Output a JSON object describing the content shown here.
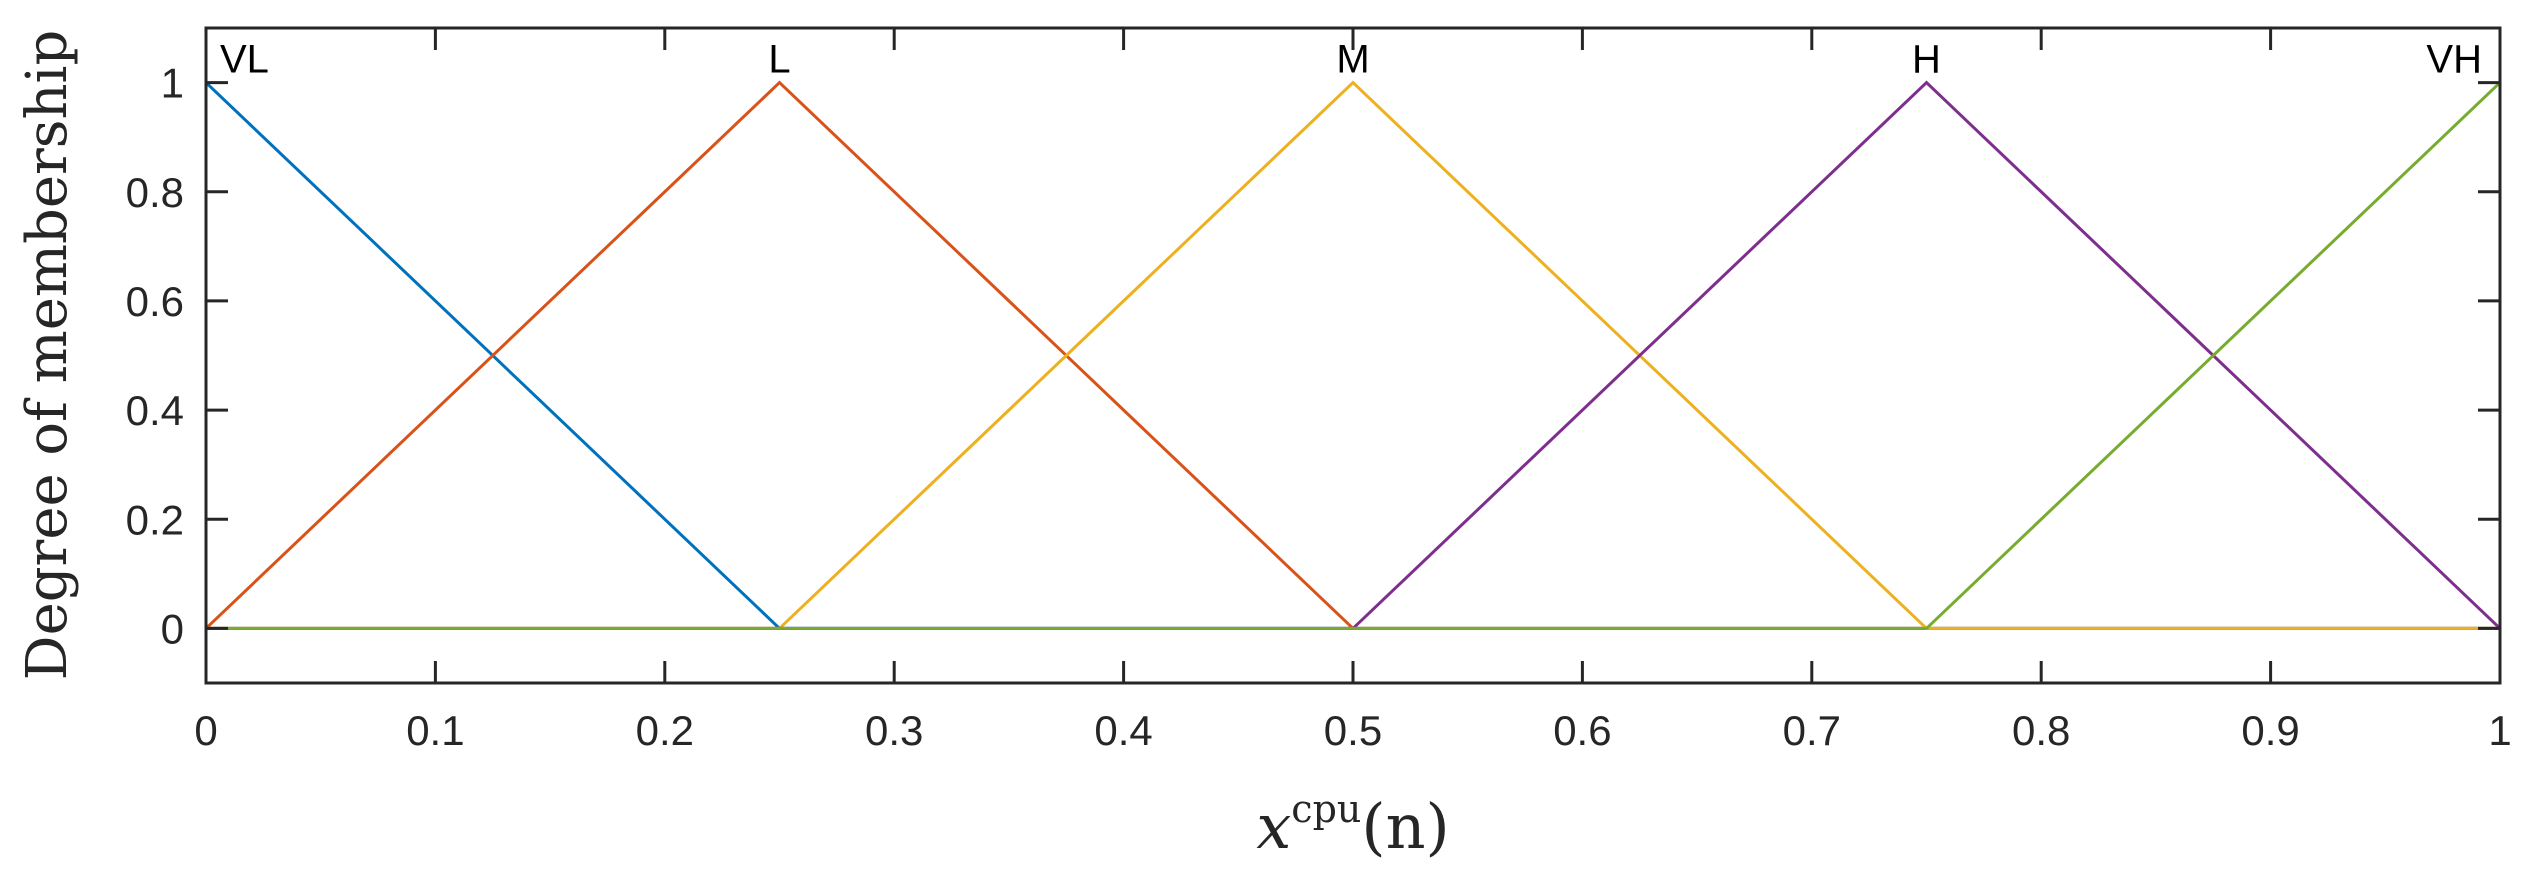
{
  "chart_data": {
    "type": "line",
    "xlabel": "x",
    "xlabel_sup": "cpu",
    "xlabel_arg": "(n)",
    "ylabel": "Degree of membership",
    "xlim": [
      0,
      1
    ],
    "ylim": [
      -0.1,
      1.1
    ],
    "x_ticks": [
      0,
      0.1,
      0.2,
      0.3,
      0.4,
      0.5,
      0.6,
      0.7,
      0.8,
      0.9,
      1
    ],
    "x_tick_labels": [
      "0",
      "0.1",
      "0.2",
      "0.3",
      "0.4",
      "0.5",
      "0.6",
      "0.7",
      "0.8",
      "0.9",
      "1"
    ],
    "y_ticks": [
      0,
      0.2,
      0.4,
      0.6,
      0.8,
      1
    ],
    "y_tick_labels": [
      "0",
      "0.2",
      "0.4",
      "0.6",
      "0.8",
      "1"
    ],
    "grid": false,
    "series": [
      {
        "name": "VL",
        "color": "#0072BD",
        "x": [
          0,
          0.25,
          1
        ],
        "y": [
          1,
          0,
          0
        ],
        "label_at": [
          0,
          1
        ],
        "label_align": "start"
      },
      {
        "name": "L",
        "color": "#D95319",
        "x": [
          0,
          0.25,
          0.5,
          1
        ],
        "y": [
          0,
          1,
          0,
          0
        ],
        "label_at": [
          0.25,
          1
        ],
        "label_align": "middle"
      },
      {
        "name": "M",
        "color": "#EDB120",
        "x": [
          0,
          0.25,
          0.5,
          0.75,
          1
        ],
        "y": [
          0,
          0,
          1,
          0,
          0
        ],
        "label_at": [
          0.5,
          1
        ],
        "label_align": "middle"
      },
      {
        "name": "H",
        "color": "#7E2F8E",
        "x": [
          0,
          0.5,
          0.75,
          1
        ],
        "y": [
          0,
          0,
          1,
          0
        ],
        "label_at": [
          0.75,
          1
        ],
        "label_align": "middle"
      },
      {
        "name": "VH",
        "color": "#77AC30",
        "x": [
          0,
          0.75,
          1
        ],
        "y": [
          0,
          0,
          1
        ],
        "label_at": [
          1,
          1
        ],
        "label_align": "end"
      }
    ]
  }
}
